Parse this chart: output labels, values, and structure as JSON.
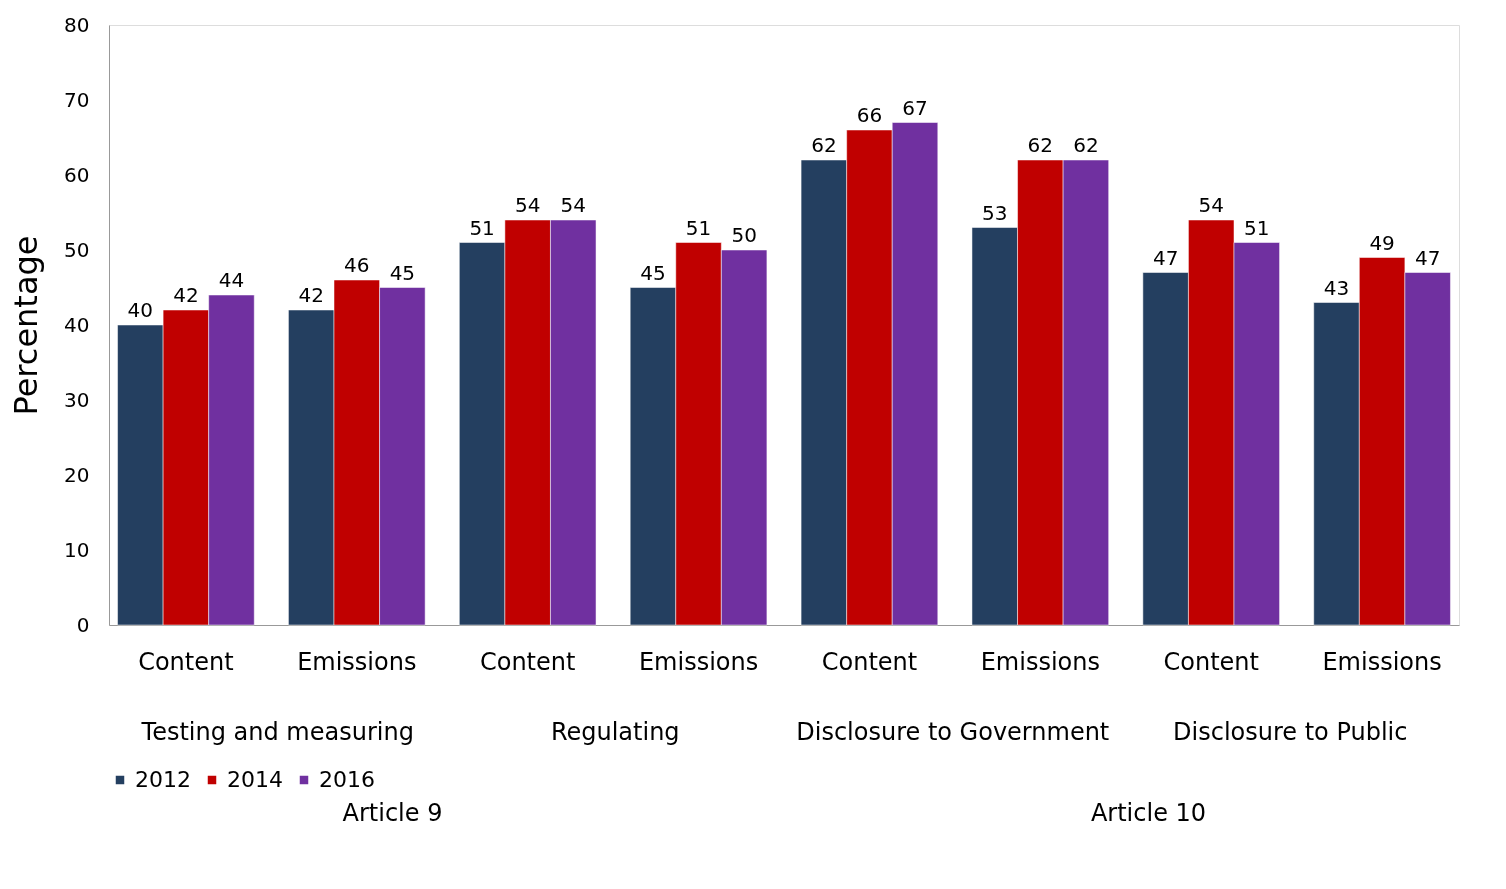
{
  "chart_data": {
    "type": "bar",
    "ylabel": "Percentage",
    "categories": [
      "Content",
      "Emissions",
      "Content",
      "Emissions",
      "Content",
      "Emissions",
      "Content",
      "Emissions"
    ],
    "series": [
      {
        "name": "2012",
        "color": "#243f60",
        "values": [
          40,
          42,
          51,
          45,
          62,
          53,
          47,
          43
        ]
      },
      {
        "name": "2014",
        "color": "#c00000",
        "values": [
          42,
          46,
          54,
          51,
          66,
          62,
          54,
          49
        ]
      },
      {
        "name": "2016",
        "color": "#7030a0",
        "values": [
          44,
          45,
          54,
          50,
          67,
          62,
          51,
          47
        ]
      }
    ],
    "ylim": [
      0,
      80
    ],
    "yticks": [
      0,
      10,
      20,
      30,
      40,
      50,
      60,
      70,
      80
    ],
    "data_labels": true,
    "grid": false,
    "legend": "bottom",
    "annotations": [
      "Testing and measuring",
      "Regulating",
      "Disclosure to Government",
      "Disclosure to Public",
      "Article 9",
      "Article 10"
    ]
  }
}
